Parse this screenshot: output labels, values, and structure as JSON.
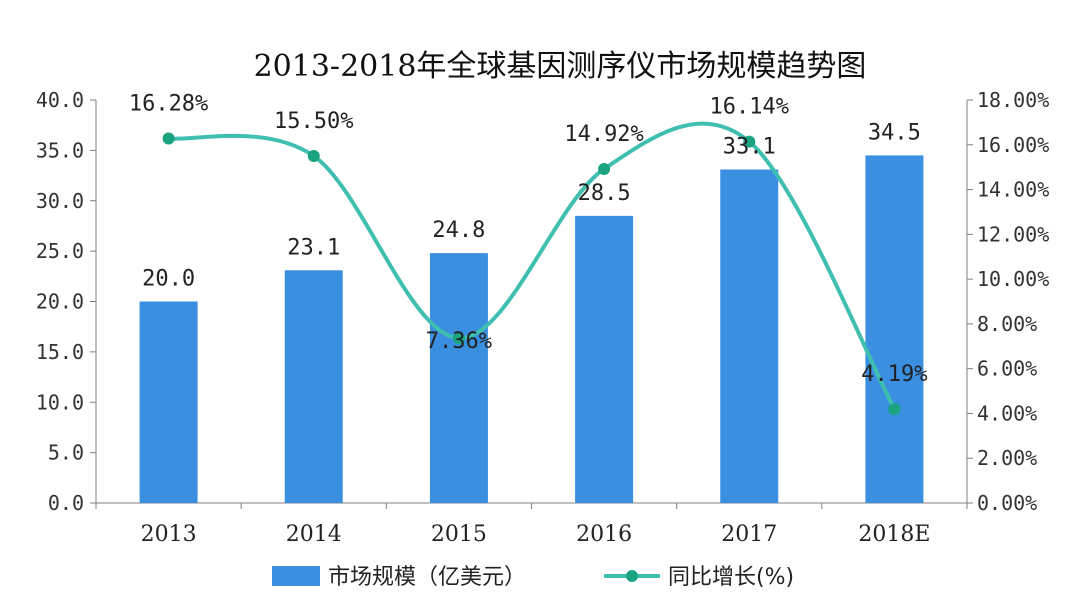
{
  "chart_data": {
    "type": "bar",
    "title": "2013-2018年全球基因测序仪市场规模趋势图",
    "categories": [
      "2013",
      "2014",
      "2015",
      "2016",
      "2017",
      "2018E"
    ],
    "series": [
      {
        "name": "市场规模（亿美元）",
        "type": "bar",
        "axis": "left",
        "color": "#3a8fe0",
        "values": [
          20.0,
          23.1,
          24.8,
          28.5,
          33.1,
          34.5
        ],
        "labels": [
          "20.0",
          "23.1",
          "24.8",
          "28.5",
          "33.1",
          "34.5"
        ]
      },
      {
        "name": "同比增长(%)",
        "type": "line",
        "smooth": true,
        "axis": "right",
        "color": "#3fbfb0",
        "marker_color": "#19a37e",
        "values": [
          16.28,
          15.5,
          7.36,
          14.92,
          16.14,
          4.19
        ],
        "labels": [
          "16.28%",
          "15.50%",
          "7.36%",
          "14.92%",
          "16.14%",
          "4.19%"
        ]
      }
    ],
    "left_axis": {
      "min": 0,
      "max": 40,
      "ticks": [
        "0.0",
        "5.0",
        "10.0",
        "15.0",
        "20.0",
        "25.0",
        "30.0",
        "35.0",
        "40.0"
      ]
    },
    "right_axis": {
      "min": 0,
      "max": 18,
      "ticks": [
        "0.00%",
        "2.00%",
        "4.00%",
        "6.00%",
        "8.00%",
        "10.00%",
        "12.00%",
        "14.00%",
        "16.00%",
        "18.00%"
      ]
    },
    "grid": false,
    "legend_position": "bottom-center"
  }
}
